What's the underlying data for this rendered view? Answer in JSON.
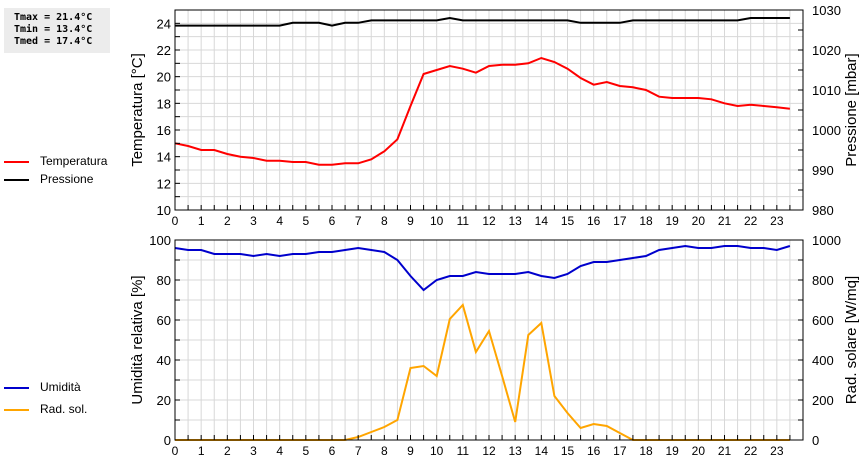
{
  "stats": {
    "tmax": "Tmax = 21.4°C",
    "tmin": "Tmin = 13.4°C",
    "tmed": "Tmed = 17.4°C"
  },
  "legend_top": [
    {
      "label": "Temperatura",
      "color": "#ff0000"
    },
    {
      "label": "Pressione",
      "color": "#000000"
    }
  ],
  "legend_bottom": [
    {
      "label": "Umidità",
      "color": "#0000cc"
    },
    {
      "label": "Rad. sol.",
      "color": "#ffa500"
    }
  ],
  "chart_data": [
    {
      "type": "line",
      "title": "",
      "xlabel": "",
      "x": [
        0,
        0.5,
        1,
        1.5,
        2,
        2.5,
        3,
        3.5,
        4,
        4.5,
        5,
        5.5,
        6,
        6.5,
        7,
        7.5,
        8,
        8.5,
        9,
        9.5,
        10,
        10.5,
        11,
        11.5,
        12,
        12.5,
        13,
        13.5,
        14,
        14.5,
        15,
        15.5,
        16,
        16.5,
        17,
        17.5,
        18,
        18.5,
        19,
        19.5,
        20,
        20.5,
        21,
        21.5,
        22,
        22.5,
        23,
        23.5
      ],
      "xticks": [
        "0",
        "1",
        "2",
        "3",
        "4",
        "5",
        "6",
        "7",
        "8",
        "9",
        "10",
        "11",
        "12",
        "13",
        "14",
        "15",
        "16",
        "17",
        "18",
        "19",
        "20",
        "21",
        "22",
        "23"
      ],
      "xlim": [
        0,
        24
      ],
      "ylabel": "Temperatura [°C]",
      "ylim": [
        10,
        25
      ],
      "yticks": [
        "10",
        "12",
        "14",
        "16",
        "18",
        "20",
        "22",
        "24"
      ],
      "y2label": "Pressione [mbar]",
      "y2lim": [
        980,
        1030
      ],
      "y2ticks": [
        "980",
        "990",
        "1000",
        "1010",
        "1020",
        "1030"
      ],
      "grid": true,
      "legend_position": "left",
      "series": [
        {
          "name": "Temperatura",
          "axis": "left",
          "color": "#ff0000",
          "values": [
            15.0,
            14.8,
            14.5,
            14.5,
            14.2,
            14.0,
            13.9,
            13.7,
            13.7,
            13.6,
            13.6,
            13.4,
            13.4,
            13.5,
            13.5,
            13.8,
            14.4,
            15.3,
            17.8,
            20.2,
            20.5,
            20.8,
            20.6,
            20.3,
            20.8,
            20.9,
            20.9,
            21.0,
            21.4,
            21.1,
            20.6,
            19.9,
            19.4,
            19.6,
            19.3,
            19.2,
            19.0,
            18.5,
            18.4,
            18.4,
            18.4,
            18.3,
            18.0,
            17.8,
            17.9,
            17.8,
            17.7,
            17.6
          ]
        },
        {
          "name": "Pressione",
          "axis": "right",
          "color": "#000000",
          "values": [
            1026.1,
            1026.1,
            1026.1,
            1026.1,
            1026.1,
            1026.1,
            1026.1,
            1026.1,
            1026.1,
            1026.8,
            1026.8,
            1026.8,
            1026.1,
            1026.8,
            1026.8,
            1027.4,
            1027.4,
            1027.4,
            1027.4,
            1027.4,
            1027.4,
            1028.0,
            1027.4,
            1027.4,
            1027.4,
            1027.4,
            1027.4,
            1027.4,
            1027.4,
            1027.4,
            1027.4,
            1026.8,
            1026.8,
            1026.8,
            1026.8,
            1027.4,
            1027.4,
            1027.4,
            1027.4,
            1027.4,
            1027.4,
            1027.4,
            1027.4,
            1027.4,
            1028.0,
            1028.0,
            1028.0,
            1028.0
          ]
        }
      ]
    },
    {
      "type": "line",
      "title": "",
      "xlabel": "",
      "x": [
        0,
        0.5,
        1,
        1.5,
        2,
        2.5,
        3,
        3.5,
        4,
        4.5,
        5,
        5.5,
        6,
        6.5,
        7,
        7.5,
        8,
        8.5,
        9,
        9.5,
        10,
        10.5,
        11,
        11.5,
        12,
        12.5,
        13,
        13.5,
        14,
        14.5,
        15,
        15.5,
        16,
        16.5,
        17,
        17.5,
        18,
        18.5,
        19,
        19.5,
        20,
        20.5,
        21,
        21.5,
        22,
        22.5,
        23,
        23.5
      ],
      "xticks": [
        "0",
        "1",
        "2",
        "3",
        "4",
        "5",
        "6",
        "7",
        "8",
        "9",
        "10",
        "11",
        "12",
        "13",
        "14",
        "15",
        "16",
        "17",
        "18",
        "19",
        "20",
        "21",
        "22",
        "23"
      ],
      "xlim": [
        0,
        24
      ],
      "ylabel": "Umidità relativa [%]",
      "ylim": [
        0,
        100
      ],
      "yticks": [
        "0",
        "20",
        "40",
        "60",
        "80",
        "100"
      ],
      "y2label": "Rad. solare [W/mq]",
      "y2lim": [
        0,
        1000
      ],
      "y2ticks": [
        "0",
        "200",
        "400",
        "600",
        "800",
        "1000"
      ],
      "grid": true,
      "legend_position": "left",
      "series": [
        {
          "name": "Umidità",
          "axis": "left",
          "color": "#0000cc",
          "values": [
            96,
            95,
            95,
            93,
            93,
            93,
            92,
            93,
            92,
            93,
            93,
            94,
            94,
            95,
            96,
            95,
            94,
            90,
            82,
            75,
            80,
            82,
            82,
            84,
            83,
            83,
            83,
            84,
            82,
            81,
            83,
            87,
            89,
            89,
            90,
            91,
            92,
            95,
            96,
            97,
            96,
            96,
            97,
            97,
            96,
            96,
            95,
            97
          ]
        },
        {
          "name": "Rad. sol.",
          "axis": "right",
          "color": "#ffa500",
          "values": [
            0,
            0,
            0,
            0,
            0,
            0,
            0,
            0,
            0,
            0,
            0,
            0,
            0,
            0,
            15,
            40,
            65,
            100,
            360,
            370,
            320,
            605,
            675,
            440,
            545,
            320,
            90,
            525,
            585,
            220,
            135,
            60,
            80,
            70,
            35,
            0,
            0,
            0,
            0,
            0,
            0,
            0,
            0,
            0,
            0,
            0,
            0,
            0
          ]
        }
      ]
    }
  ]
}
